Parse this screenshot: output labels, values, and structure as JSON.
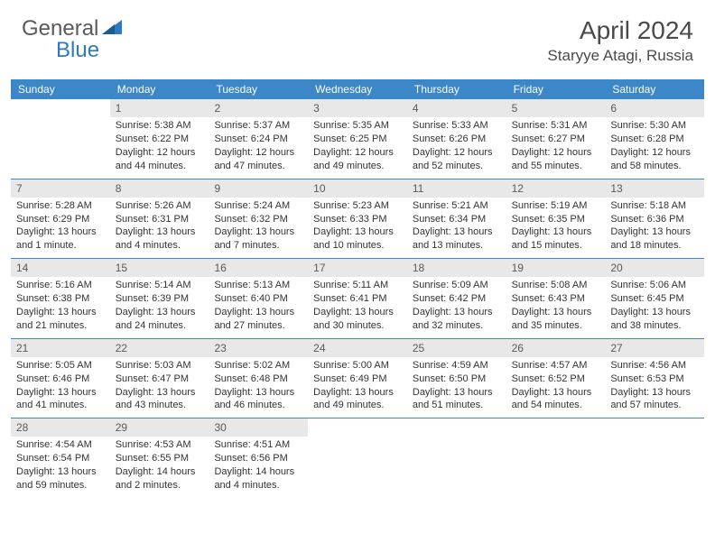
{
  "logo": {
    "part1": "General",
    "part2": "Blue"
  },
  "title": "April 2024",
  "location": "Staryye Atagi, Russia",
  "colors": {
    "header_bar": "#3b87c8",
    "daynum_bg": "#e8e8e8",
    "text": "#333333",
    "title_text": "#4a4a4a",
    "logo_gray": "#5a5a5a",
    "logo_blue": "#2d7bbf"
  },
  "weekdays": [
    "Sunday",
    "Monday",
    "Tuesday",
    "Wednesday",
    "Thursday",
    "Friday",
    "Saturday"
  ],
  "weeks": [
    [
      {
        "n": "",
        "sr": "",
        "ss": "",
        "dl": ""
      },
      {
        "n": "1",
        "sr": "Sunrise: 5:38 AM",
        "ss": "Sunset: 6:22 PM",
        "dl": "Daylight: 12 hours and 44 minutes."
      },
      {
        "n": "2",
        "sr": "Sunrise: 5:37 AM",
        "ss": "Sunset: 6:24 PM",
        "dl": "Daylight: 12 hours and 47 minutes."
      },
      {
        "n": "3",
        "sr": "Sunrise: 5:35 AM",
        "ss": "Sunset: 6:25 PM",
        "dl": "Daylight: 12 hours and 49 minutes."
      },
      {
        "n": "4",
        "sr": "Sunrise: 5:33 AM",
        "ss": "Sunset: 6:26 PM",
        "dl": "Daylight: 12 hours and 52 minutes."
      },
      {
        "n": "5",
        "sr": "Sunrise: 5:31 AM",
        "ss": "Sunset: 6:27 PM",
        "dl": "Daylight: 12 hours and 55 minutes."
      },
      {
        "n": "6",
        "sr": "Sunrise: 5:30 AM",
        "ss": "Sunset: 6:28 PM",
        "dl": "Daylight: 12 hours and 58 minutes."
      }
    ],
    [
      {
        "n": "7",
        "sr": "Sunrise: 5:28 AM",
        "ss": "Sunset: 6:29 PM",
        "dl": "Daylight: 13 hours and 1 minute."
      },
      {
        "n": "8",
        "sr": "Sunrise: 5:26 AM",
        "ss": "Sunset: 6:31 PM",
        "dl": "Daylight: 13 hours and 4 minutes."
      },
      {
        "n": "9",
        "sr": "Sunrise: 5:24 AM",
        "ss": "Sunset: 6:32 PM",
        "dl": "Daylight: 13 hours and 7 minutes."
      },
      {
        "n": "10",
        "sr": "Sunrise: 5:23 AM",
        "ss": "Sunset: 6:33 PM",
        "dl": "Daylight: 13 hours and 10 minutes."
      },
      {
        "n": "11",
        "sr": "Sunrise: 5:21 AM",
        "ss": "Sunset: 6:34 PM",
        "dl": "Daylight: 13 hours and 13 minutes."
      },
      {
        "n": "12",
        "sr": "Sunrise: 5:19 AM",
        "ss": "Sunset: 6:35 PM",
        "dl": "Daylight: 13 hours and 15 minutes."
      },
      {
        "n": "13",
        "sr": "Sunrise: 5:18 AM",
        "ss": "Sunset: 6:36 PM",
        "dl": "Daylight: 13 hours and 18 minutes."
      }
    ],
    [
      {
        "n": "14",
        "sr": "Sunrise: 5:16 AM",
        "ss": "Sunset: 6:38 PM",
        "dl": "Daylight: 13 hours and 21 minutes."
      },
      {
        "n": "15",
        "sr": "Sunrise: 5:14 AM",
        "ss": "Sunset: 6:39 PM",
        "dl": "Daylight: 13 hours and 24 minutes."
      },
      {
        "n": "16",
        "sr": "Sunrise: 5:13 AM",
        "ss": "Sunset: 6:40 PM",
        "dl": "Daylight: 13 hours and 27 minutes."
      },
      {
        "n": "17",
        "sr": "Sunrise: 5:11 AM",
        "ss": "Sunset: 6:41 PM",
        "dl": "Daylight: 13 hours and 30 minutes."
      },
      {
        "n": "18",
        "sr": "Sunrise: 5:09 AM",
        "ss": "Sunset: 6:42 PM",
        "dl": "Daylight: 13 hours and 32 minutes."
      },
      {
        "n": "19",
        "sr": "Sunrise: 5:08 AM",
        "ss": "Sunset: 6:43 PM",
        "dl": "Daylight: 13 hours and 35 minutes."
      },
      {
        "n": "20",
        "sr": "Sunrise: 5:06 AM",
        "ss": "Sunset: 6:45 PM",
        "dl": "Daylight: 13 hours and 38 minutes."
      }
    ],
    [
      {
        "n": "21",
        "sr": "Sunrise: 5:05 AM",
        "ss": "Sunset: 6:46 PM",
        "dl": "Daylight: 13 hours and 41 minutes."
      },
      {
        "n": "22",
        "sr": "Sunrise: 5:03 AM",
        "ss": "Sunset: 6:47 PM",
        "dl": "Daylight: 13 hours and 43 minutes."
      },
      {
        "n": "23",
        "sr": "Sunrise: 5:02 AM",
        "ss": "Sunset: 6:48 PM",
        "dl": "Daylight: 13 hours and 46 minutes."
      },
      {
        "n": "24",
        "sr": "Sunrise: 5:00 AM",
        "ss": "Sunset: 6:49 PM",
        "dl": "Daylight: 13 hours and 49 minutes."
      },
      {
        "n": "25",
        "sr": "Sunrise: 4:59 AM",
        "ss": "Sunset: 6:50 PM",
        "dl": "Daylight: 13 hours and 51 minutes."
      },
      {
        "n": "26",
        "sr": "Sunrise: 4:57 AM",
        "ss": "Sunset: 6:52 PM",
        "dl": "Daylight: 13 hours and 54 minutes."
      },
      {
        "n": "27",
        "sr": "Sunrise: 4:56 AM",
        "ss": "Sunset: 6:53 PM",
        "dl": "Daylight: 13 hours and 57 minutes."
      }
    ],
    [
      {
        "n": "28",
        "sr": "Sunrise: 4:54 AM",
        "ss": "Sunset: 6:54 PM",
        "dl": "Daylight: 13 hours and 59 minutes."
      },
      {
        "n": "29",
        "sr": "Sunrise: 4:53 AM",
        "ss": "Sunset: 6:55 PM",
        "dl": "Daylight: 14 hours and 2 minutes."
      },
      {
        "n": "30",
        "sr": "Sunrise: 4:51 AM",
        "ss": "Sunset: 6:56 PM",
        "dl": "Daylight: 14 hours and 4 minutes."
      },
      {
        "n": "",
        "sr": "",
        "ss": "",
        "dl": ""
      },
      {
        "n": "",
        "sr": "",
        "ss": "",
        "dl": ""
      },
      {
        "n": "",
        "sr": "",
        "ss": "",
        "dl": ""
      },
      {
        "n": "",
        "sr": "",
        "ss": "",
        "dl": ""
      }
    ]
  ]
}
